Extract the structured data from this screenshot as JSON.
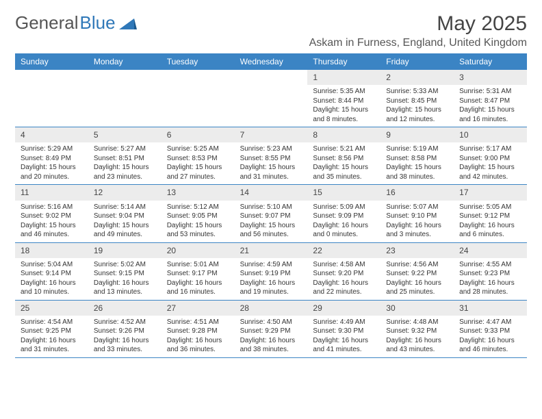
{
  "brand": {
    "part1": "General",
    "part2": "Blue"
  },
  "title": "May 2025",
  "location": "Askam in Furness, England, United Kingdom",
  "colors": {
    "header_bg": "#3b84c4",
    "header_text": "#ffffff",
    "daynum_bg": "#ececec",
    "week_divider": "#3b84c4",
    "brand_accent": "#2f78b8"
  },
  "weekdays": [
    "Sunday",
    "Monday",
    "Tuesday",
    "Wednesday",
    "Thursday",
    "Friday",
    "Saturday"
  ],
  "weeks": [
    [
      null,
      null,
      null,
      null,
      {
        "n": "1",
        "sr": "5:35 AM",
        "ss": "8:44 PM",
        "dl": "15 hours and 8 minutes."
      },
      {
        "n": "2",
        "sr": "5:33 AM",
        "ss": "8:45 PM",
        "dl": "15 hours and 12 minutes."
      },
      {
        "n": "3",
        "sr": "5:31 AM",
        "ss": "8:47 PM",
        "dl": "15 hours and 16 minutes."
      }
    ],
    [
      {
        "n": "4",
        "sr": "5:29 AM",
        "ss": "8:49 PM",
        "dl": "15 hours and 20 minutes."
      },
      {
        "n": "5",
        "sr": "5:27 AM",
        "ss": "8:51 PM",
        "dl": "15 hours and 23 minutes."
      },
      {
        "n": "6",
        "sr": "5:25 AM",
        "ss": "8:53 PM",
        "dl": "15 hours and 27 minutes."
      },
      {
        "n": "7",
        "sr": "5:23 AM",
        "ss": "8:55 PM",
        "dl": "15 hours and 31 minutes."
      },
      {
        "n": "8",
        "sr": "5:21 AM",
        "ss": "8:56 PM",
        "dl": "15 hours and 35 minutes."
      },
      {
        "n": "9",
        "sr": "5:19 AM",
        "ss": "8:58 PM",
        "dl": "15 hours and 38 minutes."
      },
      {
        "n": "10",
        "sr": "5:17 AM",
        "ss": "9:00 PM",
        "dl": "15 hours and 42 minutes."
      }
    ],
    [
      {
        "n": "11",
        "sr": "5:16 AM",
        "ss": "9:02 PM",
        "dl": "15 hours and 46 minutes."
      },
      {
        "n": "12",
        "sr": "5:14 AM",
        "ss": "9:04 PM",
        "dl": "15 hours and 49 minutes."
      },
      {
        "n": "13",
        "sr": "5:12 AM",
        "ss": "9:05 PM",
        "dl": "15 hours and 53 minutes."
      },
      {
        "n": "14",
        "sr": "5:10 AM",
        "ss": "9:07 PM",
        "dl": "15 hours and 56 minutes."
      },
      {
        "n": "15",
        "sr": "5:09 AM",
        "ss": "9:09 PM",
        "dl": "16 hours and 0 minutes."
      },
      {
        "n": "16",
        "sr": "5:07 AM",
        "ss": "9:10 PM",
        "dl": "16 hours and 3 minutes."
      },
      {
        "n": "17",
        "sr": "5:05 AM",
        "ss": "9:12 PM",
        "dl": "16 hours and 6 minutes."
      }
    ],
    [
      {
        "n": "18",
        "sr": "5:04 AM",
        "ss": "9:14 PM",
        "dl": "16 hours and 10 minutes."
      },
      {
        "n": "19",
        "sr": "5:02 AM",
        "ss": "9:15 PM",
        "dl": "16 hours and 13 minutes."
      },
      {
        "n": "20",
        "sr": "5:01 AM",
        "ss": "9:17 PM",
        "dl": "16 hours and 16 minutes."
      },
      {
        "n": "21",
        "sr": "4:59 AM",
        "ss": "9:19 PM",
        "dl": "16 hours and 19 minutes."
      },
      {
        "n": "22",
        "sr": "4:58 AM",
        "ss": "9:20 PM",
        "dl": "16 hours and 22 minutes."
      },
      {
        "n": "23",
        "sr": "4:56 AM",
        "ss": "9:22 PM",
        "dl": "16 hours and 25 minutes."
      },
      {
        "n": "24",
        "sr": "4:55 AM",
        "ss": "9:23 PM",
        "dl": "16 hours and 28 minutes."
      }
    ],
    [
      {
        "n": "25",
        "sr": "4:54 AM",
        "ss": "9:25 PM",
        "dl": "16 hours and 31 minutes."
      },
      {
        "n": "26",
        "sr": "4:52 AM",
        "ss": "9:26 PM",
        "dl": "16 hours and 33 minutes."
      },
      {
        "n": "27",
        "sr": "4:51 AM",
        "ss": "9:28 PM",
        "dl": "16 hours and 36 minutes."
      },
      {
        "n": "28",
        "sr": "4:50 AM",
        "ss": "9:29 PM",
        "dl": "16 hours and 38 minutes."
      },
      {
        "n": "29",
        "sr": "4:49 AM",
        "ss": "9:30 PM",
        "dl": "16 hours and 41 minutes."
      },
      {
        "n": "30",
        "sr": "4:48 AM",
        "ss": "9:32 PM",
        "dl": "16 hours and 43 minutes."
      },
      {
        "n": "31",
        "sr": "4:47 AM",
        "ss": "9:33 PM",
        "dl": "16 hours and 46 minutes."
      }
    ]
  ],
  "labels": {
    "sunrise": "Sunrise:",
    "sunset": "Sunset:",
    "daylight": "Daylight:"
  }
}
